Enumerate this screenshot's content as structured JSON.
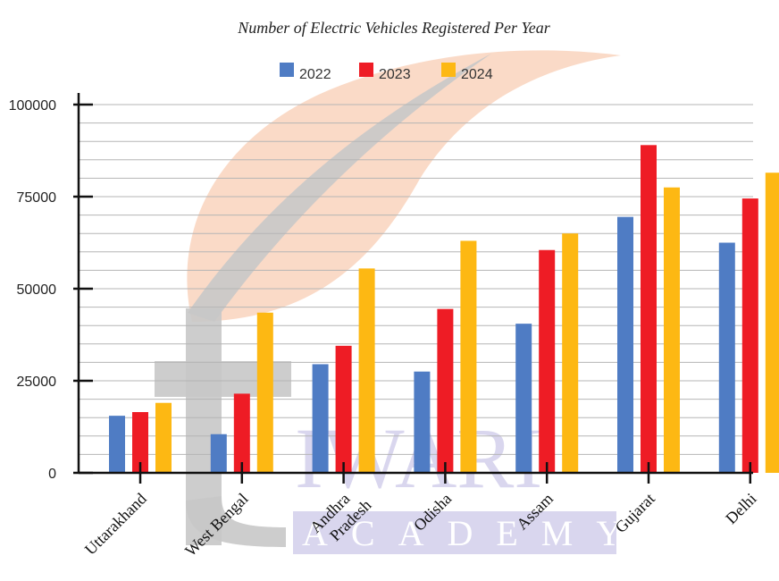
{
  "chart_data": {
    "type": "bar",
    "title": "Number of Electric Vehicles Registered Per Year",
    "xlabel": "",
    "ylabel": "",
    "ylim": [
      0,
      100000
    ],
    "yticks": [
      0,
      25000,
      50000,
      75000,
      100000
    ],
    "ytick_labels": [
      "0",
      "25000",
      "50000",
      "75000",
      "100000"
    ],
    "grid": true,
    "legend_position": "top-center",
    "categories": [
      [
        "Uttarakhand"
      ],
      [
        "West Bengal"
      ],
      [
        "Andhra",
        "Pradesh"
      ],
      [
        "Odisha"
      ],
      [
        "Assam"
      ],
      [
        "Gujarat"
      ],
      [
        "Delhi"
      ]
    ],
    "series": [
      {
        "name": "2022",
        "color": "#4f7cc4",
        "values": [
          15500,
          10500,
          29500,
          27500,
          40500,
          69500,
          62500
        ]
      },
      {
        "name": "2023",
        "color": "#ee1c25",
        "values": [
          16500,
          21500,
          34500,
          44500,
          60500,
          89000,
          74500
        ]
      },
      {
        "name": "2024",
        "color": "#fdb813",
        "values": [
          19000,
          43500,
          55500,
          63000,
          65000,
          77500,
          81500
        ]
      }
    ]
  },
  "watermark": {
    "line1": "IWARI",
    "line2": "ACADEMY"
  }
}
